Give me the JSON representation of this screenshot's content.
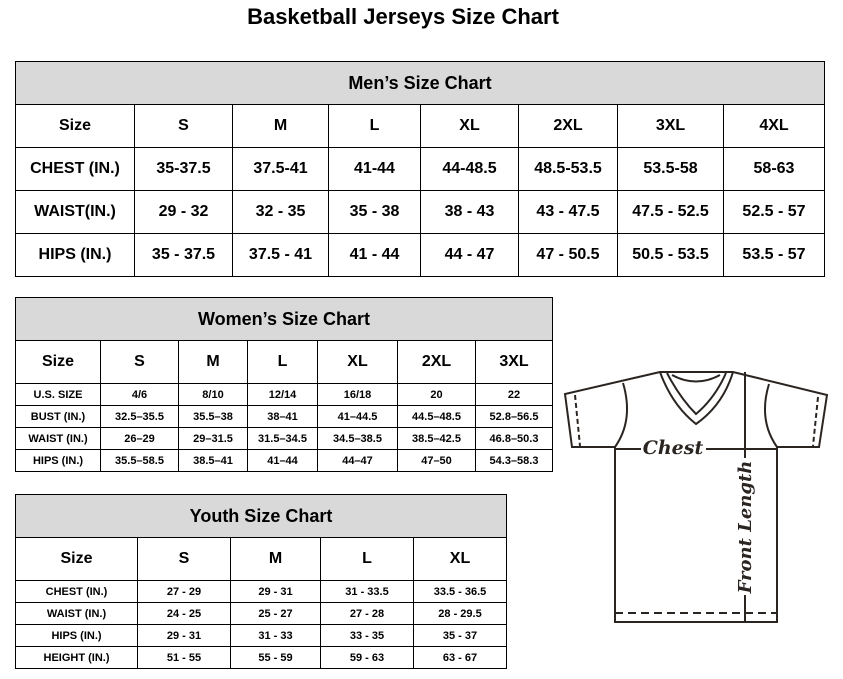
{
  "title": "Basketball Jerseys Size Chart",
  "men": {
    "caption": "Men’s Size Chart",
    "rows": [
      [
        "Size",
        "S",
        "M",
        "L",
        "XL",
        "2XL",
        "3XL",
        "4XL"
      ],
      [
        "CHEST (IN.)",
        "35-37.5",
        "37.5-41",
        "41-44",
        "44-48.5",
        "48.5-53.5",
        "53.5-58",
        "58-63"
      ],
      [
        "WAIST(IN.)",
        "29 - 32",
        "32 - 35",
        "35 - 38",
        "38 - 43",
        "43 - 47.5",
        "47.5 - 52.5",
        "52.5 - 57"
      ],
      [
        "HIPS (IN.)",
        "35 - 37.5",
        "37.5 - 41",
        "41 - 44",
        "44 - 47",
        "47 - 50.5",
        "50.5 - 53.5",
        "53.5 - 57"
      ]
    ]
  },
  "women": {
    "caption": "Women’s Size Chart",
    "rows": [
      [
        "Size",
        "S",
        "M",
        "L",
        "XL",
        "2XL",
        "3XL"
      ],
      [
        "U.S. SIZE",
        "4/6",
        "8/10",
        "12/14",
        "16/18",
        "20",
        "22"
      ],
      [
        "BUST (IN.)",
        "32.5–35.5",
        "35.5–38",
        "38–41",
        "41–44.5",
        "44.5–48.5",
        "52.8–56.5"
      ],
      [
        "WAIST (IN.)",
        "26–29",
        "29–31.5",
        "31.5–34.5",
        "34.5–38.5",
        "38.5–42.5",
        "46.8–50.3"
      ],
      [
        "HIPS (IN.)",
        "35.5–58.5",
        "38.5–41",
        "41–44",
        "44–47",
        "47–50",
        "54.3–58.3"
      ]
    ]
  },
  "youth": {
    "caption": "Youth Size Chart",
    "rows": [
      [
        "Size",
        "S",
        "M",
        "L",
        "XL"
      ],
      [
        "CHEST (IN.)",
        "27 - 29",
        "29 - 31",
        "31 - 33.5",
        "33.5 - 36.5"
      ],
      [
        "WAIST (IN.)",
        "24 - 25",
        "25 - 27",
        "27 - 28",
        "28 - 29.5"
      ],
      [
        "HIPS (IN.)",
        "29 - 31",
        "31 - 33",
        "33 - 35",
        "35 - 37"
      ],
      [
        "HEIGHT (IN.)",
        "51 - 55",
        "55 - 59",
        "59 - 63",
        "63 - 67"
      ]
    ]
  },
  "diagram": {
    "chest_label": "Chest",
    "length_label": "Front Length"
  }
}
